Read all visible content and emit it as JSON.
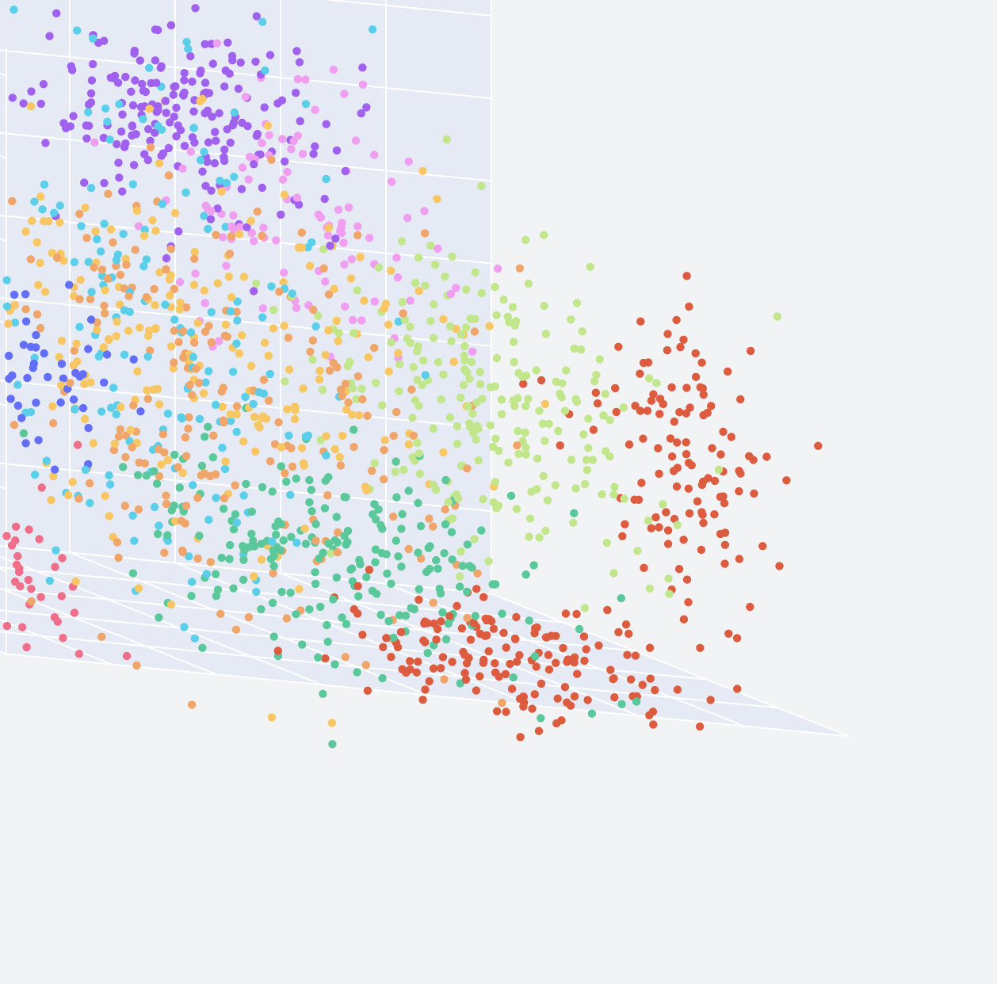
{
  "chart_data": {
    "type": "scatter",
    "dimensions": 3,
    "title": "",
    "xlabel": "",
    "ylabel": "",
    "zlabel": "",
    "grid": true,
    "legend": "none",
    "background": "#f2f3f5",
    "pane_color": "#e5eaf4",
    "grid_color": "#ffffff",
    "series": [
      {
        "color": "#636efa",
        "clusters": [
          {
            "center": [
              -6.0,
              5.2,
              4.5
            ],
            "spread": [
              1.2,
              1.1,
              1.1
            ],
            "count": 230
          },
          {
            "center": [
              -3.8,
              4.8,
              2.8
            ],
            "spread": [
              0.8,
              0.8,
              0.7
            ],
            "count": 55
          }
        ]
      },
      {
        "color": "#ef6f8a",
        "clusters": [
          {
            "center": [
              -6.4,
              4.9,
              0.8
            ],
            "spread": [
              1.1,
              0.9,
              1.0
            ],
            "count": 150
          },
          {
            "center": [
              -4.6,
              4.6,
              -0.8
            ],
            "spread": [
              0.9,
              0.7,
              0.6
            ],
            "count": 70
          }
        ]
      },
      {
        "color": "#a061ee",
        "clusters": [
          {
            "center": [
              0.0,
              5.6,
              7.7
            ],
            "spread": [
              1.3,
              1.0,
              1.0
            ],
            "count": 200
          }
        ]
      },
      {
        "color": "#f09ef0",
        "clusters": [
          {
            "center": [
              1.8,
              5.0,
              6.5
            ],
            "spread": [
              1.1,
              1.0,
              1.2
            ],
            "count": 100
          }
        ]
      },
      {
        "color": "#c2e68c",
        "clusters": [
          {
            "center": [
              2.9,
              2.0,
              4.0
            ],
            "spread": [
              1.2,
              1.4,
              1.3
            ],
            "count": 230
          }
        ]
      },
      {
        "color": "#dd5b3f",
        "clusters": [
          {
            "center": [
              6.2,
              1.6,
              3.5
            ],
            "spread": [
              0.7,
              0.8,
              1.3
            ],
            "count": 120
          },
          {
            "center": [
              2.2,
              0.8,
              -0.4
            ],
            "spread": [
              1.6,
              0.9,
              0.6
            ],
            "count": 150
          }
        ]
      },
      {
        "color": "#5ac89a",
        "clusters": [
          {
            "center": [
              0.0,
              2.2,
              0.8
            ],
            "spread": [
              1.6,
              1.3,
              1.0
            ],
            "count": 210
          }
        ]
      },
      {
        "color": "#5bcfe9",
        "clusters": [
          {
            "center": [
              -1.4,
              4.3,
              4.4
            ],
            "spread": [
              1.3,
              1.1,
              2.3
            ],
            "count": 170
          }
        ]
      },
      {
        "color": "#f8c764",
        "clusters": [
          {
            "center": [
              -0.8,
              4.0,
              3.8
            ],
            "spread": [
              2.2,
              1.4,
              2.0
            ],
            "count": 230
          }
        ]
      },
      {
        "color": "#f0a56a",
        "clusters": [
          {
            "center": [
              -1.5,
              3.2,
              3.0
            ],
            "spread": [
              2.3,
              1.5,
              1.9
            ],
            "count": 220
          }
        ]
      }
    ]
  }
}
